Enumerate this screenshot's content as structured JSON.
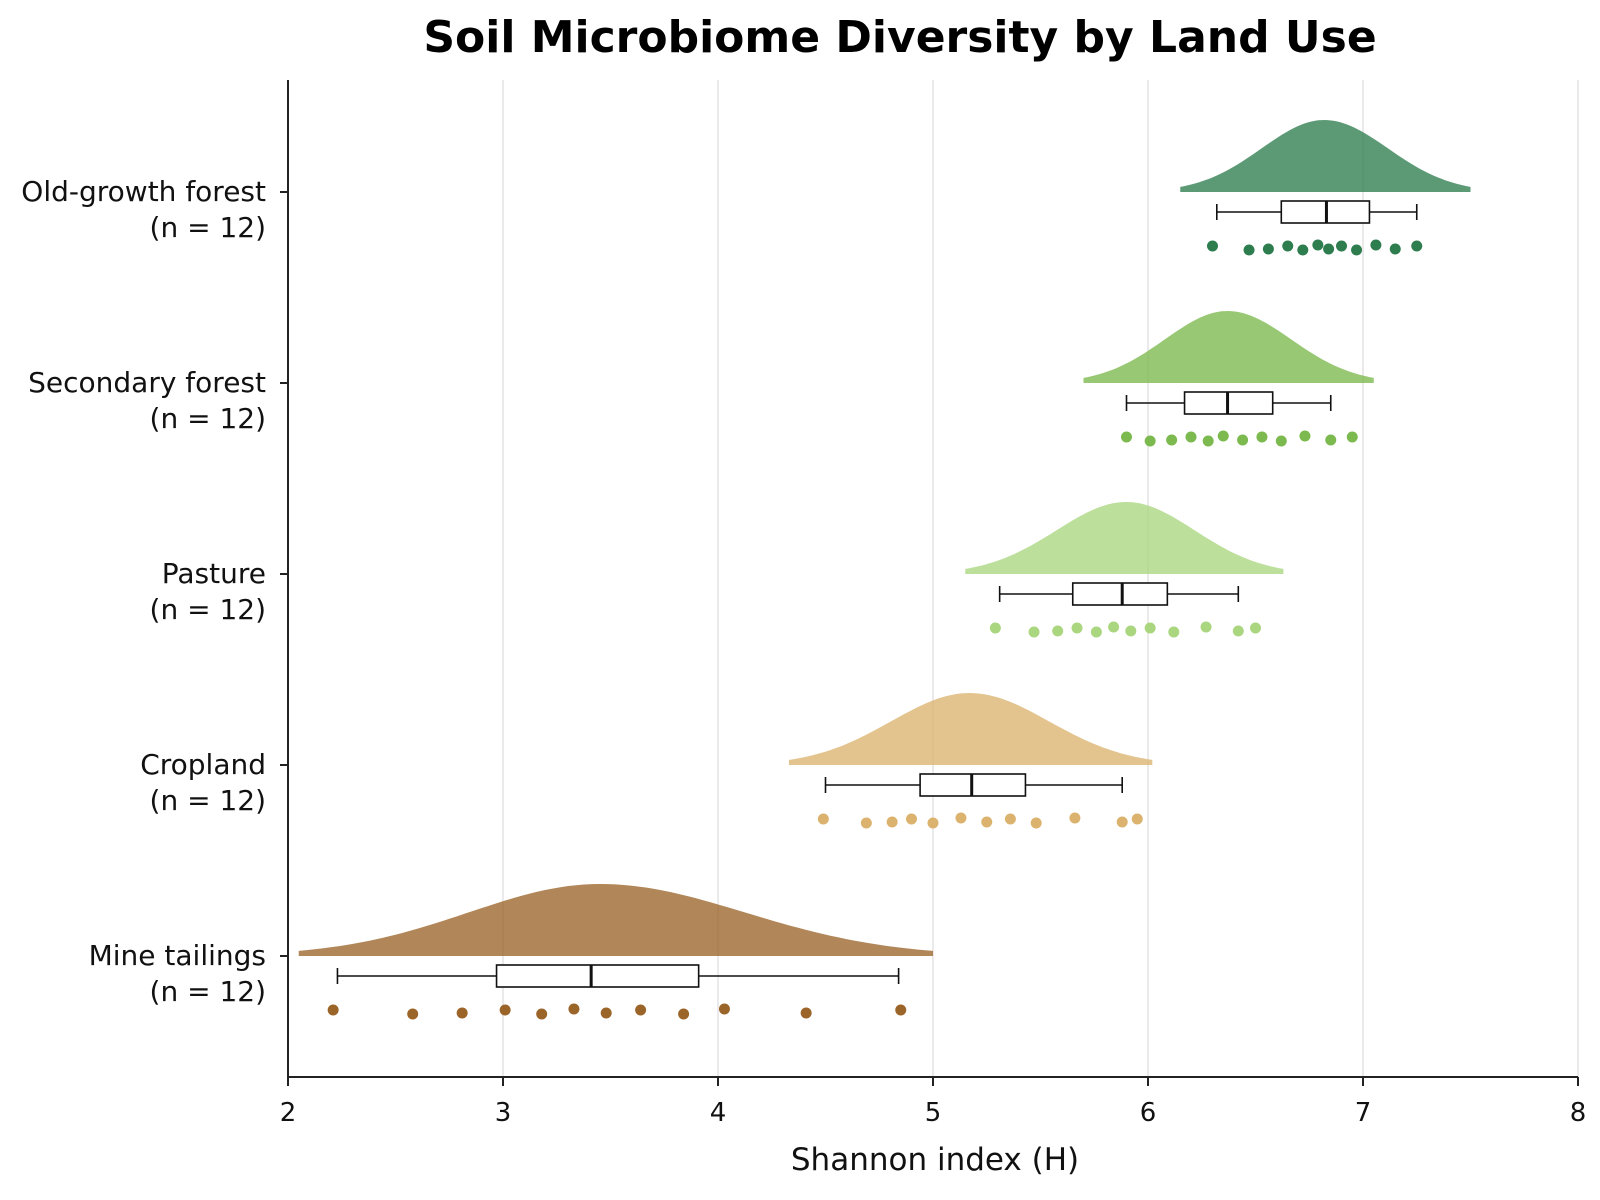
{
  "chart_data": {
    "type": "raincloud",
    "title": "Soil Microbiome Diversity by Land Use",
    "xlabel": "Shannon index (H)",
    "ylabel": "",
    "xlim": [
      2,
      8
    ],
    "xticks": [
      2,
      3,
      4,
      5,
      6,
      7,
      8
    ],
    "grid": "vertical",
    "categories": [
      {
        "name": "Old-growth forest",
        "n_label": "(n = 12)",
        "color": "#2e7d4f",
        "box": {
          "whisker_low": 6.32,
          "q1": 6.62,
          "median": 6.83,
          "q3": 7.03,
          "whisker_high": 7.25
        },
        "density": {
          "min": 6.15,
          "peak": 6.82,
          "max": 7.5
        },
        "points": [
          6.3,
          6.47,
          6.56,
          6.65,
          6.72,
          6.79,
          6.84,
          6.9,
          6.97,
          7.06,
          7.15,
          7.25
        ]
      },
      {
        "name": "Secondary forest",
        "n_label": "(n = 12)",
        "color": "#7cb94e",
        "box": {
          "whisker_low": 5.9,
          "q1": 6.17,
          "median": 6.37,
          "q3": 6.58,
          "whisker_high": 6.85
        },
        "density": {
          "min": 5.7,
          "peak": 6.37,
          "max": 7.05
        },
        "points": [
          5.9,
          6.01,
          6.11,
          6.2,
          6.28,
          6.35,
          6.44,
          6.53,
          6.62,
          6.73,
          6.85,
          6.95
        ]
      },
      {
        "name": "Pasture",
        "n_label": "(n = 12)",
        "color": "#a9d67f",
        "box": {
          "whisker_low": 5.31,
          "q1": 5.65,
          "median": 5.88,
          "q3": 6.09,
          "whisker_high": 6.42
        },
        "density": {
          "min": 5.15,
          "peak": 5.9,
          "max": 6.63
        },
        "points": [
          5.29,
          5.47,
          5.58,
          5.67,
          5.76,
          5.84,
          5.92,
          6.01,
          6.12,
          6.27,
          6.42,
          6.5
        ]
      },
      {
        "name": "Cropland",
        "n_label": "(n = 12)",
        "color": "#dbb36e",
        "box": {
          "whisker_low": 4.5,
          "q1": 4.94,
          "median": 5.18,
          "q3": 5.43,
          "whisker_high": 5.88
        },
        "density": {
          "min": 4.33,
          "peak": 5.17,
          "max": 6.02
        },
        "points": [
          4.49,
          4.69,
          4.81,
          4.9,
          5.0,
          5.13,
          5.25,
          5.36,
          5.48,
          5.66,
          5.88,
          5.95
        ]
      },
      {
        "name": "Mine tailings",
        "n_label": "(n = 12)",
        "color": "#9b6429",
        "box": {
          "whisker_low": 2.23,
          "q1": 2.97,
          "median": 3.41,
          "q3": 3.91,
          "whisker_high": 4.84
        },
        "density": {
          "min": 2.05,
          "peak": 3.45,
          "max": 5.0
        },
        "points": [
          2.21,
          2.58,
          2.81,
          3.01,
          3.18,
          3.33,
          3.48,
          3.64,
          3.84,
          4.03,
          4.41,
          4.85
        ]
      }
    ]
  }
}
